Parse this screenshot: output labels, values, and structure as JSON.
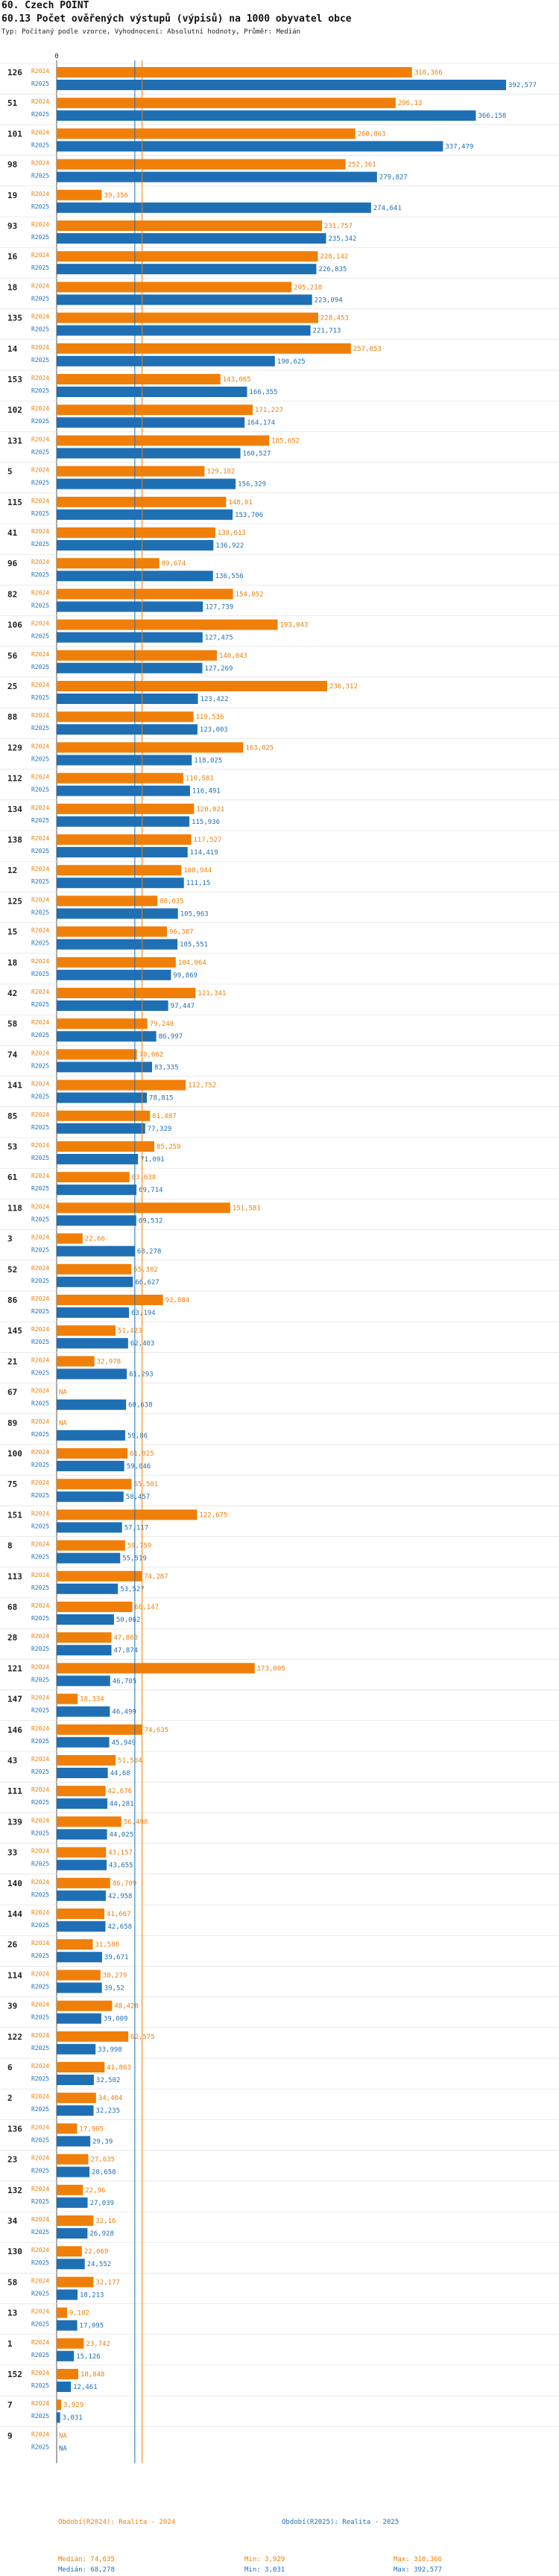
{
  "header": {
    "title": "60. Czech POINT",
    "subtitle": "60.13 Počet ověřených výstupů (výpisů) na 1000 obyvatel obce",
    "meta": "Typ: Počítaný podle vzorce, Vyhodnocení: Absolutní hodnoty, Průměr: Medián"
  },
  "colors": {
    "r2024": "#f07f09",
    "r2025": "#1f6fb5",
    "axis": "#555555",
    "median2024": "#f07f09",
    "median2025": "#1f6fb5"
  },
  "legend": {
    "s2024": {
      "label": "Období(R2024): Realita - 2024",
      "median": "Medián: 74,635",
      "min": "Min: 3,929",
      "max": "Max: 310,366"
    },
    "s2025": {
      "label": "Období(R2025): Realita - 2025",
      "median": "Medián: 68,278",
      "min": "Min: 3,031",
      "max": "Max: 392,577"
    }
  },
  "chart_data": {
    "type": "bar",
    "orientation": "horizontal",
    "title": "60.13 Počet ověřených výstupů (výpisů) na 1000 obyvatel obce",
    "xlim": [
      0,
      392.577
    ],
    "axis_tick_label": "0",
    "medians": {
      "R2024": 74.635,
      "R2025": 68.278
    },
    "series_names": [
      "R2024",
      "R2025"
    ],
    "rows": [
      {
        "id": "126",
        "r2024": 310.366,
        "l2024": "310,366",
        "r2025": 392.577,
        "l2025": "392,577"
      },
      {
        "id": "51",
        "r2024": 296.13,
        "l2024": "296,13",
        "r2025": 366.158,
        "l2025": "366,158"
      },
      {
        "id": "101",
        "r2024": 260.863,
        "l2024": "260,863",
        "r2025": 337.479,
        "l2025": "337,479"
      },
      {
        "id": "98",
        "r2024": 252.361,
        "l2024": "252,361",
        "r2025": 279.827,
        "l2025": "279,827"
      },
      {
        "id": "19",
        "r2024": 39.356,
        "l2024": "39,356",
        "r2025": 274.641,
        "l2025": "274,641"
      },
      {
        "id": "93",
        "r2024": 231.757,
        "l2024": "231,757",
        "r2025": 235.342,
        "l2025": "235,342"
      },
      {
        "id": "16",
        "r2024": 228.142,
        "l2024": "228,142",
        "r2025": 226.835,
        "l2025": "226,835"
      },
      {
        "id": "18",
        "r2024": 205.218,
        "l2024": "205,218",
        "r2025": 223.094,
        "l2025": "223,094"
      },
      {
        "id": "135",
        "r2024": 228.453,
        "l2024": "228,453",
        "r2025": 221.713,
        "l2025": "221,713"
      },
      {
        "id": "14",
        "r2024": 257.053,
        "l2024": "257,053",
        "r2025": 190.625,
        "l2025": "190,625"
      },
      {
        "id": "153",
        "r2024": 143.065,
        "l2024": "143,065",
        "r2025": 166.355,
        "l2025": "166,355"
      },
      {
        "id": "102",
        "r2024": 171.227,
        "l2024": "171,227",
        "r2025": 164.174,
        "l2025": "164,174"
      },
      {
        "id": "131",
        "r2024": 185.652,
        "l2024": "185,652",
        "r2025": 160.527,
        "l2025": "160,527"
      },
      {
        "id": "5",
        "r2024": 129.182,
        "l2024": "129,182",
        "r2025": 156.329,
        "l2025": "156,329"
      },
      {
        "id": "115",
        "r2024": 148.01,
        "l2024": "148,01",
        "r2025": 153.706,
        "l2025": "153,706"
      },
      {
        "id": "41",
        "r2024": 138.613,
        "l2024": "138,613",
        "r2025": 136.922,
        "l2025": "136,922"
      },
      {
        "id": "96",
        "r2024": 89.674,
        "l2024": "89,674",
        "r2025": 136.556,
        "l2025": "136,556"
      },
      {
        "id": "82",
        "r2024": 154.052,
        "l2024": "154,052",
        "r2025": 127.739,
        "l2025": "127,739"
      },
      {
        "id": "106",
        "r2024": 193.043,
        "l2024": "193,043",
        "r2025": 127.475,
        "l2025": "127,475"
      },
      {
        "id": "56",
        "r2024": 140.043,
        "l2024": "140,043",
        "r2025": 127.269,
        "l2025": "127,269"
      },
      {
        "id": "25",
        "r2024": 236.312,
        "l2024": "236,312",
        "r2025": 123.422,
        "l2025": "123,422"
      },
      {
        "id": "88",
        "r2024": 119.536,
        "l2024": "119,536",
        "r2025": 123.003,
        "l2025": "123,003"
      },
      {
        "id": "129",
        "r2024": 163.025,
        "l2024": "163,025",
        "r2025": 118.025,
        "l2025": "118,025"
      },
      {
        "id": "112",
        "r2024": 110.581,
        "l2024": "110,581",
        "r2025": 116.491,
        "l2025": "116,491"
      },
      {
        "id": "134",
        "r2024": 120.021,
        "l2024": "120,021",
        "r2025": 115.936,
        "l2025": "115,936"
      },
      {
        "id": "138",
        "r2024": 117.527,
        "l2024": "117,527",
        "r2025": 114.419,
        "l2025": "114,419"
      },
      {
        "id": "12",
        "r2024": 108.944,
        "l2024": "108,944",
        "r2025": 111.15,
        "l2025": "111,15"
      },
      {
        "id": "125",
        "r2024": 88.035,
        "l2024": "88,035",
        "r2025": 105.963,
        "l2025": "105,963"
      },
      {
        "id": "15",
        "r2024": 96.387,
        "l2024": "96,387",
        "r2025": 105.551,
        "l2025": "105,551"
      },
      {
        "id": "18",
        "r2024": 104.064,
        "l2024": "104,064",
        "r2025": 99.869,
        "l2025": "99,869"
      },
      {
        "id": "42",
        "r2024": 121.341,
        "l2024": "121,341",
        "r2025": 97.447,
        "l2025": "97,447"
      },
      {
        "id": "58",
        "r2024": 79.248,
        "l2024": "79,248",
        "r2025": 86.997,
        "l2025": "86,997"
      },
      {
        "id": "74",
        "r2024": 70.062,
        "l2024": "70,062",
        "r2025": 83.335,
        "l2025": "83,335"
      },
      {
        "id": "141",
        "r2024": 112.752,
        "l2024": "112,752",
        "r2025": 78.815,
        "l2025": "78,815"
      },
      {
        "id": "85",
        "r2024": 81.487,
        "l2024": "81,487",
        "r2025": 77.329,
        "l2025": "77,329"
      },
      {
        "id": "53",
        "r2024": 85.259,
        "l2024": "85,259",
        "r2025": 71.091,
        "l2025": "71,091"
      },
      {
        "id": "61",
        "r2024": 63.638,
        "l2024": "63,638",
        "r2025": 69.714,
        "l2025": "69,714"
      },
      {
        "id": "118",
        "r2024": 151.581,
        "l2024": "151,581",
        "r2025": 69.532,
        "l2025": "69,532"
      },
      {
        "id": "3",
        "r2024": 22.66,
        "l2024": "22,66",
        "r2025": 68.278,
        "l2025": "68,278"
      },
      {
        "id": "52",
        "r2024": 65.302,
        "l2024": "65,302",
        "r2025": 66.627,
        "l2025": "66,627"
      },
      {
        "id": "86",
        "r2024": 92.884,
        "l2024": "92,884",
        "r2025": 63.194,
        "l2025": "63,194"
      },
      {
        "id": "145",
        "r2024": 51.423,
        "l2024": "51,423",
        "r2025": 62.403,
        "l2025": "62,403"
      },
      {
        "id": "21",
        "r2024": 32.978,
        "l2024": "32,978",
        "r2025": 61.293,
        "l2025": "61,293"
      },
      {
        "id": "67",
        "r2024": null,
        "l2024": "NA",
        "r2025": 60.638,
        "l2025": "60,638"
      },
      {
        "id": "89",
        "r2024": null,
        "l2024": "NA",
        "r2025": 59.86,
        "l2025": "59,86"
      },
      {
        "id": "100",
        "r2024": 61.925,
        "l2024": "61,925",
        "r2025": 59.046,
        "l2025": "59,046"
      },
      {
        "id": "75",
        "r2024": 65.501,
        "l2024": "65,501",
        "r2025": 58.457,
        "l2025": "58,457"
      },
      {
        "id": "151",
        "r2024": 122.675,
        "l2024": "122,675",
        "r2025": 57.117,
        "l2025": "57,117"
      },
      {
        "id": "8",
        "r2024": 59.759,
        "l2024": "59,759",
        "r2025": 55.519,
        "l2025": "55,519"
      },
      {
        "id": "113",
        "r2024": 74.287,
        "l2024": "74,287",
        "r2025": 53.527,
        "l2025": "53,527"
      },
      {
        "id": "68",
        "r2024": 66.147,
        "l2024": "66,147",
        "r2025": 50.062,
        "l2025": "50,062"
      },
      {
        "id": "28",
        "r2024": 47.863,
        "l2024": "47,863",
        "r2025": 47.874,
        "l2025": "47,874"
      },
      {
        "id": "121",
        "r2024": 173.005,
        "l2024": "173,005",
        "r2025": 46.705,
        "l2025": "46,705"
      },
      {
        "id": "147",
        "r2024": 18.334,
        "l2024": "18,334",
        "r2025": 46.499,
        "l2025": "46,499"
      },
      {
        "id": "146",
        "r2024": 74.635,
        "l2024": "74,635",
        "r2025": 45.949,
        "l2025": "45,949"
      },
      {
        "id": "43",
        "r2024": 51.504,
        "l2024": "51,504",
        "r2025": 44.68,
        "l2025": "44,68"
      },
      {
        "id": "111",
        "r2024": 42.676,
        "l2024": "42,676",
        "r2025": 44.281,
        "l2025": "44,281"
      },
      {
        "id": "139",
        "r2024": 56.498,
        "l2024": "56,498",
        "r2025": 44.025,
        "l2025": "44,025"
      },
      {
        "id": "33",
        "r2024": 43.157,
        "l2024": "43,157",
        "r2025": 43.655,
        "l2025": "43,655"
      },
      {
        "id": "140",
        "r2024": 46.709,
        "l2024": "46,709",
        "r2025": 42.958,
        "l2025": "42,958"
      },
      {
        "id": "144",
        "r2024": 41.667,
        "l2024": "41,667",
        "r2025": 42.658,
        "l2025": "42,658"
      },
      {
        "id": "26",
        "r2024": 31.588,
        "l2024": "31,588",
        "r2025": 39.671,
        "l2025": "39,671"
      },
      {
        "id": "114",
        "r2024": 38.279,
        "l2024": "38,279",
        "r2025": 39.52,
        "l2025": "39,52"
      },
      {
        "id": "39",
        "r2024": 48.428,
        "l2024": "48,428",
        "r2025": 39.009,
        "l2025": "39,009"
      },
      {
        "id": "122",
        "r2024": 62.575,
        "l2024": "62,575",
        "r2025": 33.998,
        "l2025": "33,998"
      },
      {
        "id": "6",
        "r2024": 41.863,
        "l2024": "41,863",
        "r2025": 32.502,
        "l2025": "32,502"
      },
      {
        "id": "2",
        "r2024": 34.404,
        "l2024": "34,404",
        "r2025": 32.235,
        "l2025": "32,235"
      },
      {
        "id": "136",
        "r2024": 17.905,
        "l2024": "17,905",
        "r2025": 29.39,
        "l2025": "29,39"
      },
      {
        "id": "23",
        "r2024": 27.635,
        "l2024": "27,635",
        "r2025": 28.658,
        "l2025": "28,658"
      },
      {
        "id": "132",
        "r2024": 22.96,
        "l2024": "22,96",
        "r2025": 27.039,
        "l2025": "27,039"
      },
      {
        "id": "34",
        "r2024": 32.16,
        "l2024": "32,16",
        "r2025": 26.928,
        "l2025": "26,928"
      },
      {
        "id": "130",
        "r2024": 22.069,
        "l2024": "22,069",
        "r2025": 24.552,
        "l2025": "24,552"
      },
      {
        "id": "58",
        "r2024": 32.177,
        "l2024": "32,177",
        "r2025": 18.213,
        "l2025": "18,213"
      },
      {
        "id": "13",
        "r2024": 9.102,
        "l2024": "9,102",
        "r2025": 17.995,
        "l2025": "17,995"
      },
      {
        "id": "1",
        "r2024": 23.742,
        "l2024": "23,742",
        "r2025": 15.126,
        "l2025": "15,126"
      },
      {
        "id": "152",
        "r2024": 18.848,
        "l2024": "18,848",
        "r2025": 12.461,
        "l2025": "12,461"
      },
      {
        "id": "7",
        "r2024": 3.929,
        "l2024": "3,929",
        "r2025": 3.031,
        "l2025": "3,031"
      },
      {
        "id": "9",
        "r2024": null,
        "l2024": "NA",
        "r2025": null,
        "l2025": "NA"
      }
    ]
  }
}
